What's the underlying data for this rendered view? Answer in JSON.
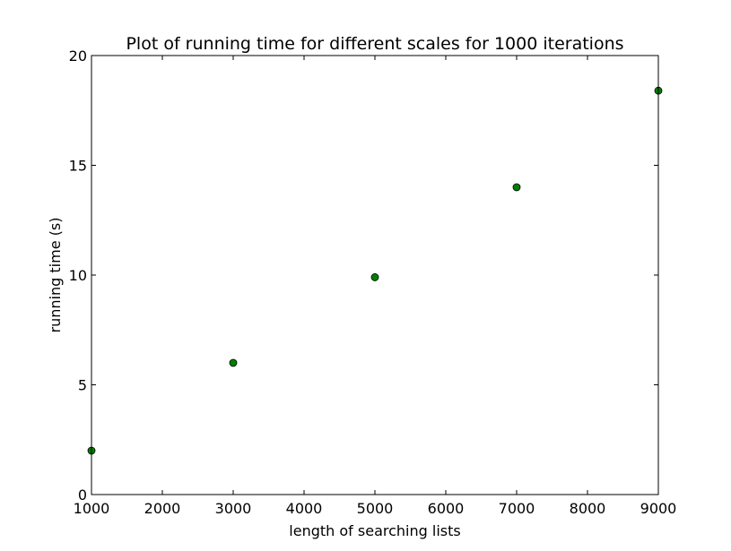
{
  "chart_data": {
    "type": "scatter",
    "title": "Plot of running time for different scales for 1000 iterations",
    "xlabel": "length of searching lists",
    "ylabel": "running time (s)",
    "xlim": [
      1000,
      9000
    ],
    "ylim": [
      0,
      20
    ],
    "xticks": [
      1000,
      2000,
      3000,
      4000,
      5000,
      6000,
      7000,
      8000,
      9000
    ],
    "yticks": [
      0,
      5,
      10,
      15,
      20
    ],
    "grid": false,
    "legend": "none",
    "series": [
      {
        "marker_color": "#008000",
        "x": [
          1000,
          3000,
          5000,
          7000,
          9000
        ],
        "y": [
          2.0,
          6.0,
          9.9,
          14.0,
          18.4
        ]
      }
    ]
  }
}
